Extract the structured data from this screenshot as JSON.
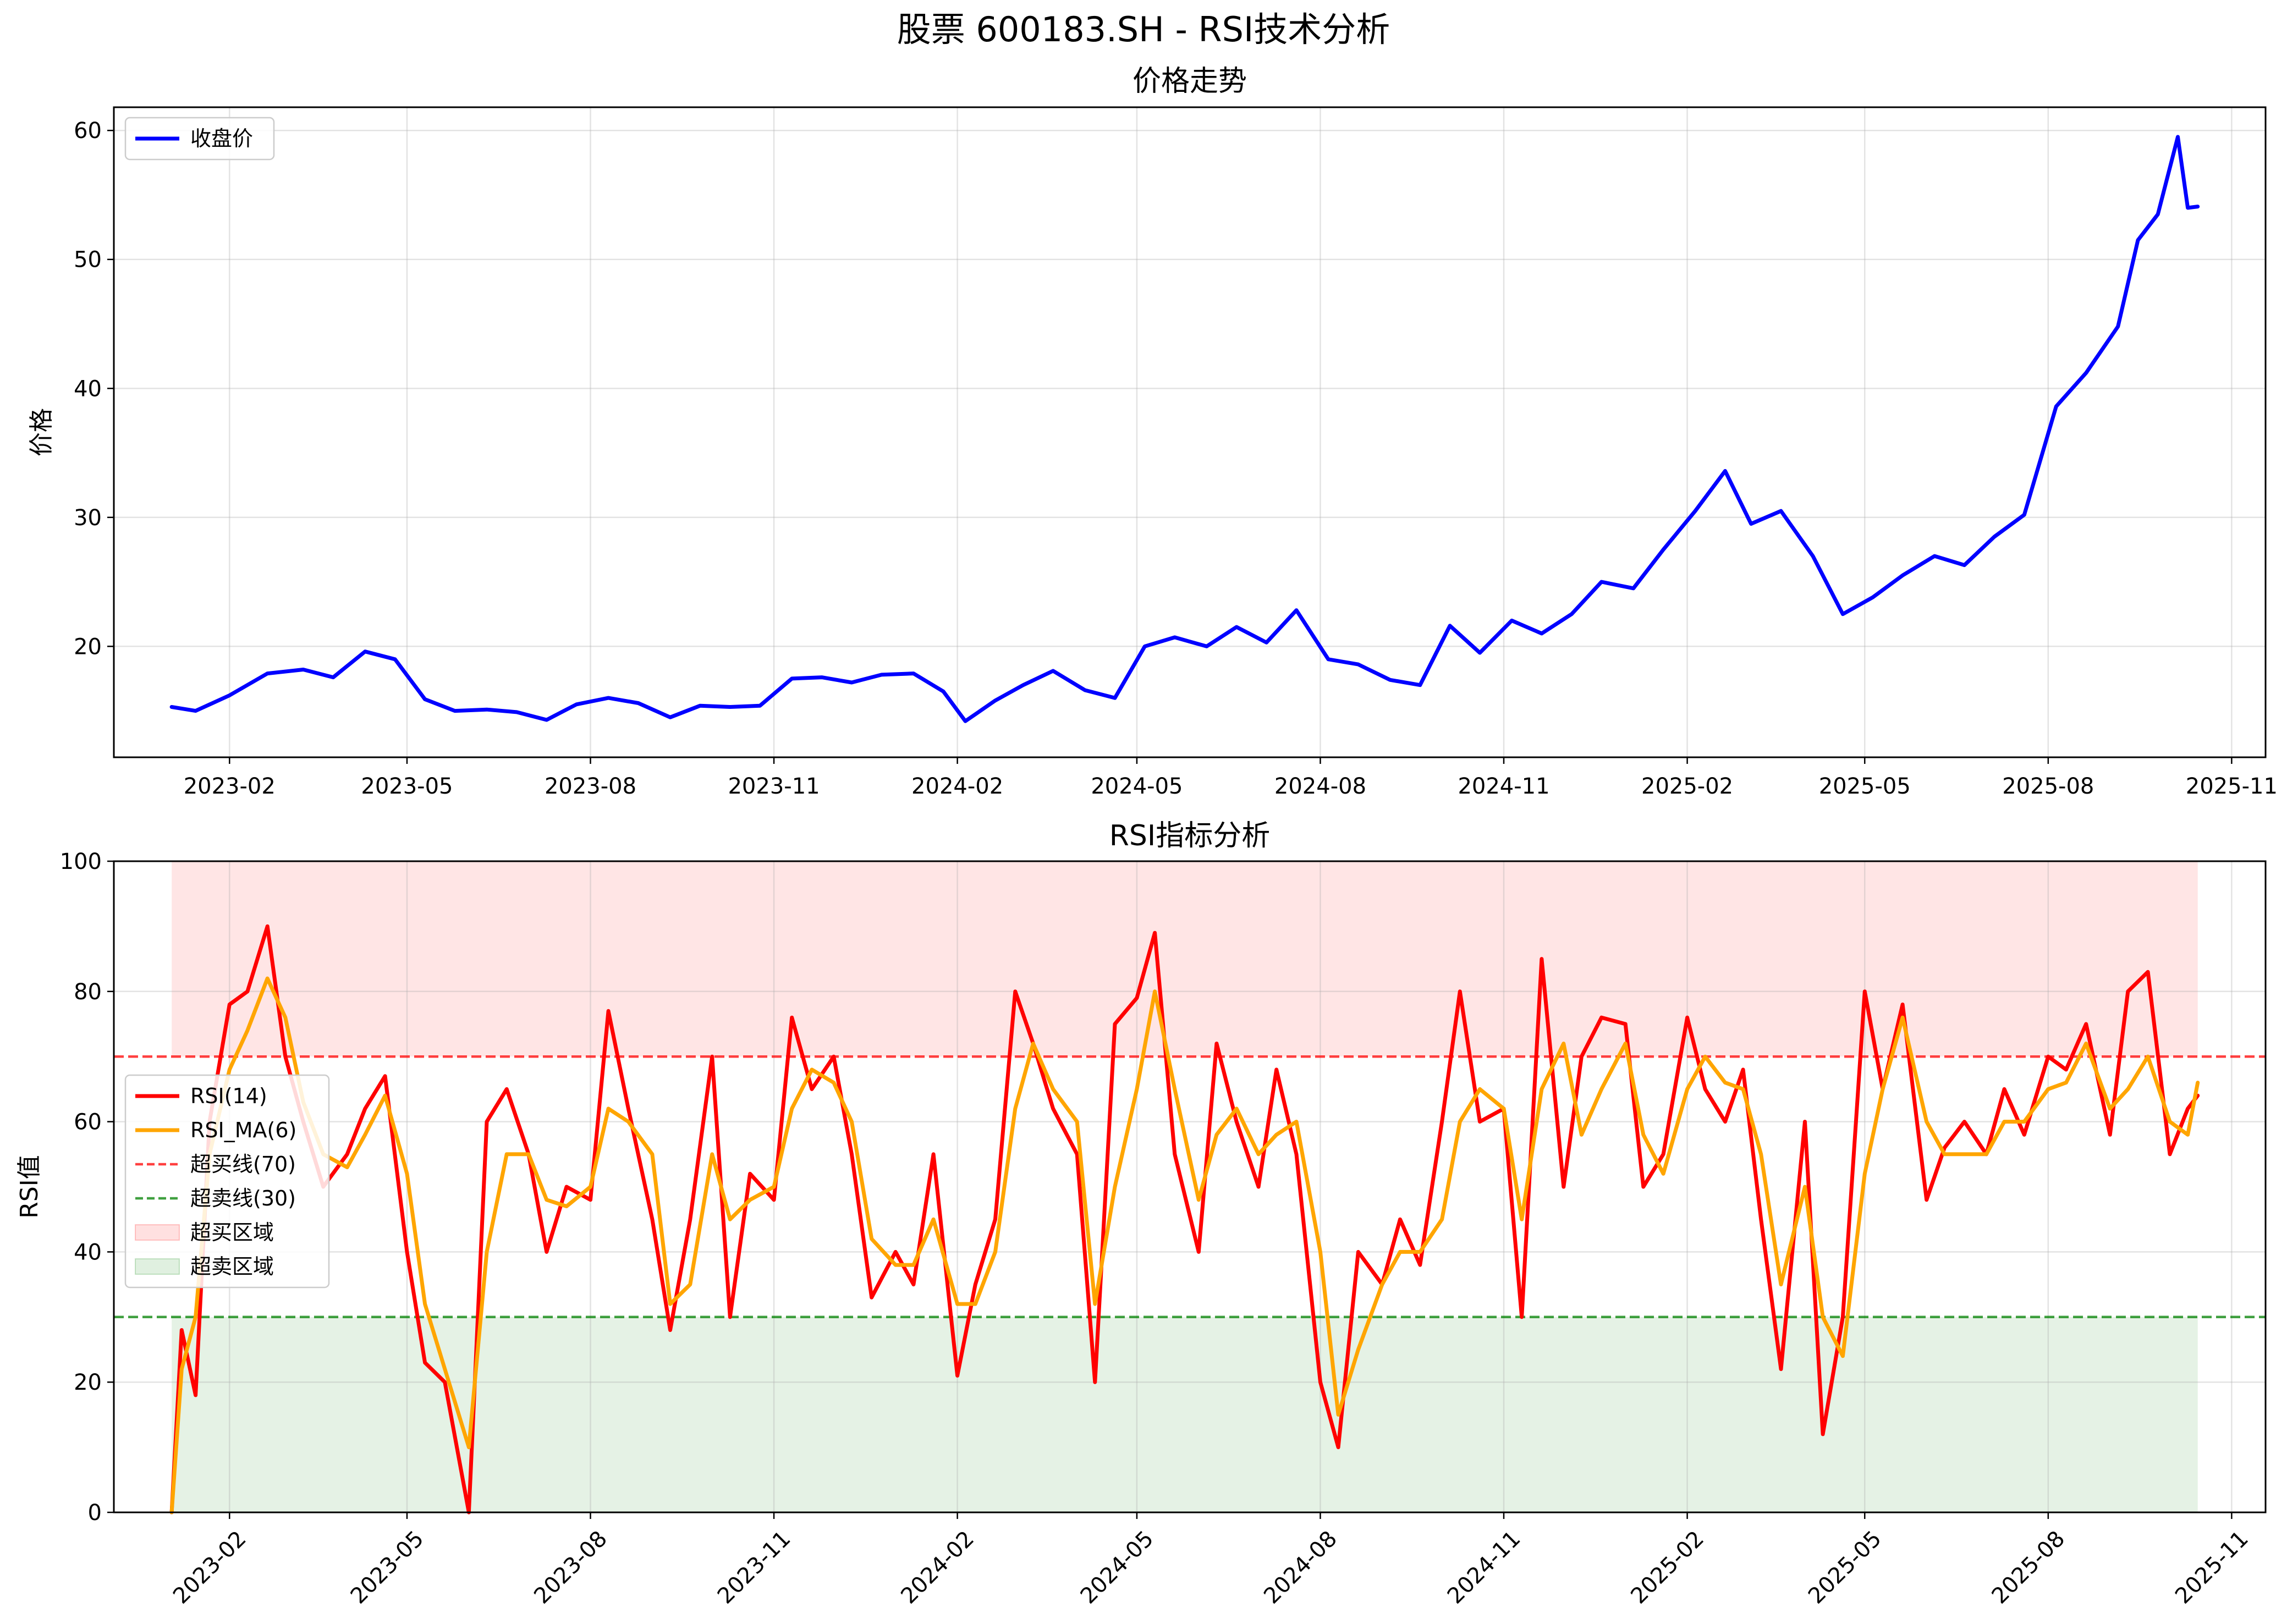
{
  "figure": {
    "suptitle": "股票 600183.SH - RSI技术分析"
  },
  "chart_data": [
    {
      "type": "line",
      "title": "价格走势",
      "xlabel": "",
      "ylabel": "价格",
      "xlim": [
        "2022-12-05",
        "2025-11-18"
      ],
      "ylim": [
        11.4,
        61.8
      ],
      "x_ticks": [
        "2023-02-01",
        "2023-05-01",
        "2023-08-01",
        "2023-11-01",
        "2024-02-01",
        "2024-05-01",
        "2024-08-01",
        "2024-11-01",
        "2025-02-01",
        "2025-05-01",
        "2025-08-01",
        "2025-11-01"
      ],
      "x_tick_labels": [
        "2023-02",
        "2023-05",
        "2023-08",
        "2023-11",
        "2024-02",
        "2024-05",
        "2024-08",
        "2024-11",
        "2025-02",
        "2025-05",
        "2025-08",
        "2025-11"
      ],
      "y_ticks": [
        20,
        30,
        40,
        50,
        60
      ],
      "y_tick_labels": [
        "20",
        "30",
        "40",
        "50",
        "60"
      ],
      "grid": true,
      "legend": {
        "position": "top-left",
        "entries": [
          "收盘价"
        ]
      },
      "series": [
        {
          "name": "收盘价",
          "color": "#0000ff",
          "x": [
            "2023-01-03",
            "2023-01-15",
            "2023-02-01",
            "2023-02-20",
            "2023-03-10",
            "2023-03-25",
            "2023-04-10",
            "2023-04-25",
            "2023-05-10",
            "2023-05-25",
            "2023-06-10",
            "2023-06-25",
            "2023-07-10",
            "2023-07-25",
            "2023-08-10",
            "2023-08-25",
            "2023-09-10",
            "2023-09-25",
            "2023-10-10",
            "2023-10-25",
            "2023-11-10",
            "2023-11-25",
            "2023-12-10",
            "2023-12-25",
            "2024-01-10",
            "2024-01-25",
            "2024-02-05",
            "2024-02-20",
            "2024-03-05",
            "2024-03-20",
            "2024-04-05",
            "2024-04-20",
            "2024-05-05",
            "2024-05-20",
            "2024-06-05",
            "2024-06-20",
            "2024-07-05",
            "2024-07-20",
            "2024-08-05",
            "2024-08-20",
            "2024-09-05",
            "2024-09-20",
            "2024-10-05",
            "2024-10-20",
            "2024-11-05",
            "2024-11-20",
            "2024-12-05",
            "2024-12-20",
            "2025-01-05",
            "2025-01-20",
            "2025-02-05",
            "2025-02-20",
            "2025-03-05",
            "2025-03-20",
            "2025-04-05",
            "2025-04-20",
            "2025-05-05",
            "2025-05-20",
            "2025-06-05",
            "2025-06-20",
            "2025-07-05",
            "2025-07-20",
            "2025-08-05",
            "2025-08-20",
            "2025-09-05",
            "2025-09-15",
            "2025-09-25",
            "2025-10-05",
            "2025-10-10",
            "2025-10-15"
          ],
          "y": [
            15.3,
            15.0,
            16.2,
            17.9,
            18.2,
            17.6,
            19.6,
            19.0,
            15.9,
            15.0,
            15.1,
            14.9,
            14.3,
            15.5,
            16.0,
            15.6,
            14.5,
            15.4,
            15.3,
            15.4,
            17.5,
            17.6,
            17.2,
            17.8,
            17.9,
            16.5,
            14.2,
            15.8,
            17.0,
            18.1,
            16.6,
            16.0,
            20.0,
            20.7,
            20.0,
            21.5,
            20.3,
            22.8,
            19.0,
            18.6,
            17.4,
            17.0,
            21.6,
            19.5,
            22.0,
            21.0,
            22.5,
            25.0,
            24.5,
            27.5,
            30.5,
            33.6,
            29.5,
            30.5,
            27.0,
            22.5,
            23.8,
            25.5,
            27.0,
            26.3,
            28.5,
            30.2,
            38.6,
            41.2,
            44.8,
            51.5,
            53.5,
            59.5,
            54.0,
            54.1
          ]
        }
      ]
    },
    {
      "type": "line",
      "title": "RSI指标分析",
      "xlabel": "",
      "ylabel": "RSI值",
      "xlim": [
        "2022-12-05",
        "2025-11-18"
      ],
      "ylim": [
        0,
        100
      ],
      "x_ticks": [
        "2023-02-01",
        "2023-05-01",
        "2023-08-01",
        "2023-11-01",
        "2024-02-01",
        "2024-05-01",
        "2024-08-01",
        "2024-11-01",
        "2025-02-01",
        "2025-05-01",
        "2025-08-01",
        "2025-11-01"
      ],
      "x_tick_labels": [
        "2023-02",
        "2023-05",
        "2023-08",
        "2023-11",
        "2024-02",
        "2024-05",
        "2024-08",
        "2024-11",
        "2025-02",
        "2025-05",
        "2025-08",
        "2025-11"
      ],
      "y_ticks": [
        0,
        20,
        40,
        60,
        80,
        100
      ],
      "y_tick_labels": [
        "0",
        "20",
        "40",
        "60",
        "80",
        "100"
      ],
      "grid": true,
      "legend": {
        "position": "center-left",
        "entries": [
          "RSI(14)",
          "RSI_MA(6)",
          "超买线(70)",
          "超卖线(30)",
          "超买区域",
          "超卖区域"
        ]
      },
      "reference_lines": [
        {
          "name": "超买线(70)",
          "y": 70,
          "color": "#ff0000",
          "style": "dashed"
        },
        {
          "name": "超卖线(30)",
          "y": 30,
          "color": "#008000",
          "style": "dashed"
        }
      ],
      "zones": [
        {
          "name": "超买区域",
          "y_from": 70,
          "y_to": 100,
          "color": "#ff0000",
          "opacity": 0.1,
          "x_from": "2023-01-03",
          "x_to": "2025-10-15"
        },
        {
          "name": "超卖区域",
          "y_from": 0,
          "y_to": 30,
          "color": "#008000",
          "opacity": 0.1,
          "x_from": "2023-01-03",
          "x_to": "2025-10-15"
        }
      ],
      "series": [
        {
          "name": "RSI(14)",
          "color": "#ff0000",
          "x": [
            "2023-01-03",
            "2023-01-08",
            "2023-01-15",
            "2023-01-22",
            "2023-02-01",
            "2023-02-10",
            "2023-02-20",
            "2023-03-01",
            "2023-03-10",
            "2023-03-20",
            "2023-04-01",
            "2023-04-10",
            "2023-04-20",
            "2023-05-01",
            "2023-05-10",
            "2023-05-20",
            "2023-06-01",
            "2023-06-10",
            "2023-06-20",
            "2023-07-01",
            "2023-07-10",
            "2023-07-20",
            "2023-08-01",
            "2023-08-10",
            "2023-08-20",
            "2023-09-01",
            "2023-09-10",
            "2023-09-20",
            "2023-10-01",
            "2023-10-10",
            "2023-10-20",
            "2023-11-01",
            "2023-11-10",
            "2023-11-20",
            "2023-12-01",
            "2023-12-10",
            "2023-12-20",
            "2024-01-01",
            "2024-01-10",
            "2024-01-20",
            "2024-02-01",
            "2024-02-10",
            "2024-02-20",
            "2024-03-01",
            "2024-03-10",
            "2024-03-20",
            "2024-04-01",
            "2024-04-10",
            "2024-04-20",
            "2024-05-01",
            "2024-05-10",
            "2024-05-20",
            "2024-06-01",
            "2024-06-10",
            "2024-06-20",
            "2024-07-01",
            "2024-07-10",
            "2024-07-20",
            "2024-08-01",
            "2024-08-10",
            "2024-08-20",
            "2024-09-01",
            "2024-09-10",
            "2024-09-20",
            "2024-10-01",
            "2024-10-10",
            "2024-10-20",
            "2024-11-01",
            "2024-11-10",
            "2024-11-20",
            "2024-12-01",
            "2024-12-10",
            "2024-12-20",
            "2025-01-01",
            "2025-01-10",
            "2025-01-20",
            "2025-02-01",
            "2025-02-10",
            "2025-02-20",
            "2025-03-01",
            "2025-03-10",
            "2025-03-20",
            "2025-04-01",
            "2025-04-10",
            "2025-04-20",
            "2025-05-01",
            "2025-05-10",
            "2025-05-20",
            "2025-06-01",
            "2025-06-10",
            "2025-06-20",
            "2025-07-01",
            "2025-07-10",
            "2025-07-20",
            "2025-08-01",
            "2025-08-10",
            "2025-08-20",
            "2025-09-01",
            "2025-09-10",
            "2025-09-20",
            "2025-10-01",
            "2025-10-10",
            "2025-10-15"
          ],
          "y": [
            0,
            28,
            18,
            60,
            78,
            80,
            90,
            70,
            60,
            50,
            55,
            62,
            67,
            40,
            23,
            20,
            0,
            60,
            65,
            55,
            40,
            50,
            48,
            77,
            62,
            45,
            28,
            45,
            70,
            30,
            52,
            48,
            76,
            65,
            70,
            55,
            33,
            40,
            35,
            55,
            21,
            35,
            45,
            80,
            72,
            62,
            55,
            20,
            75,
            79,
            89,
            55,
            40,
            72,
            60,
            50,
            68,
            55,
            20,
            10,
            40,
            35,
            45,
            38,
            60,
            80,
            60,
            62,
            30,
            85,
            50,
            70,
            76,
            75,
            50,
            55,
            76,
            65,
            60,
            68,
            45,
            22,
            60,
            12,
            30,
            80,
            65,
            78,
            48,
            56,
            60,
            55,
            65,
            58,
            70,
            68,
            75,
            58,
            80,
            83,
            55,
            62,
            64
          ]
        },
        {
          "name": "RSI_MA(6)",
          "color": "#ffa500",
          "x": [
            "2023-01-03",
            "2023-01-08",
            "2023-01-15",
            "2023-01-22",
            "2023-02-01",
            "2023-02-10",
            "2023-02-20",
            "2023-03-01",
            "2023-03-10",
            "2023-03-20",
            "2023-04-01",
            "2023-04-10",
            "2023-04-20",
            "2023-05-01",
            "2023-05-10",
            "2023-05-20",
            "2023-06-01",
            "2023-06-10",
            "2023-06-20",
            "2023-07-01",
            "2023-07-10",
            "2023-07-20",
            "2023-08-01",
            "2023-08-10",
            "2023-08-20",
            "2023-09-01",
            "2023-09-10",
            "2023-09-20",
            "2023-10-01",
            "2023-10-10",
            "2023-10-20",
            "2023-11-01",
            "2023-11-10",
            "2023-11-20",
            "2023-12-01",
            "2023-12-10",
            "2023-12-20",
            "2024-01-01",
            "2024-01-10",
            "2024-01-20",
            "2024-02-01",
            "2024-02-10",
            "2024-02-20",
            "2024-03-01",
            "2024-03-10",
            "2024-03-20",
            "2024-04-01",
            "2024-04-10",
            "2024-04-20",
            "2024-05-01",
            "2024-05-10",
            "2024-05-20",
            "2024-06-01",
            "2024-06-10",
            "2024-06-20",
            "2024-07-01",
            "2024-07-10",
            "2024-07-20",
            "2024-08-01",
            "2024-08-10",
            "2024-08-20",
            "2024-09-01",
            "2024-09-10",
            "2024-09-20",
            "2024-10-01",
            "2024-10-10",
            "2024-10-20",
            "2024-11-01",
            "2024-11-10",
            "2024-11-20",
            "2024-12-01",
            "2024-12-10",
            "2024-12-20",
            "2025-01-01",
            "2025-01-10",
            "2025-01-20",
            "2025-02-01",
            "2025-02-10",
            "2025-02-20",
            "2025-03-01",
            "2025-03-10",
            "2025-03-20",
            "2025-04-01",
            "2025-04-10",
            "2025-04-20",
            "2025-05-01",
            "2025-05-10",
            "2025-05-20",
            "2025-06-01",
            "2025-06-10",
            "2025-06-20",
            "2025-07-01",
            "2025-07-10",
            "2025-07-20",
            "2025-08-01",
            "2025-08-10",
            "2025-08-20",
            "2025-09-01",
            "2025-09-10",
            "2025-09-20",
            "2025-10-01",
            "2025-10-10",
            "2025-10-15"
          ],
          "y": [
            0,
            22,
            30,
            55,
            68,
            74,
            82,
            76,
            63,
            55,
            53,
            58,
            64,
            52,
            32,
            22,
            10,
            40,
            55,
            55,
            48,
            47,
            50,
            62,
            60,
            55,
            32,
            35,
            55,
            45,
            48,
            50,
            62,
            68,
            66,
            60,
            42,
            38,
            38,
            45,
            32,
            32,
            40,
            62,
            72,
            65,
            60,
            32,
            50,
            65,
            80,
            65,
            48,
            58,
            62,
            55,
            58,
            60,
            40,
            15,
            25,
            35,
            40,
            40,
            45,
            60,
            65,
            62,
            45,
            65,
            72,
            58,
            65,
            72,
            58,
            52,
            65,
            70,
            66,
            65,
            55,
            35,
            50,
            30,
            24,
            52,
            65,
            76,
            60,
            55,
            55,
            55,
            60,
            60,
            65,
            66,
            72,
            62,
            65,
            70,
            60,
            58,
            66
          ]
        }
      ]
    }
  ]
}
